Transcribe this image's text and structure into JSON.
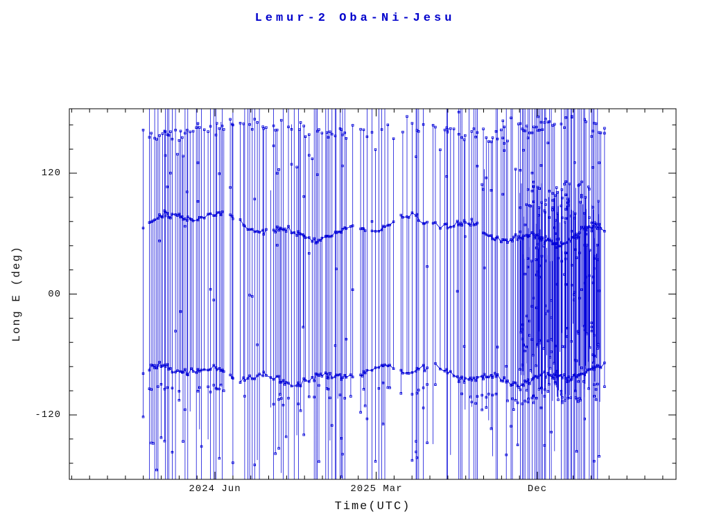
{
  "chart_data": {
    "type": "scatter",
    "title": "Lemur-2 Oba-Ni-Jesu",
    "xlabel": "Time(UTC)",
    "ylabel": "Long E (deg)",
    "legend": "none",
    "grid": false,
    "description": "Dense blue time-series of satellite pass longitudes (wrapping at +/-180 deg) versus time; thousands of points joined by near-vertical lines, with marker bands near +65 deg, -80 deg and a fringe near +165 deg, and a very dense cluster in late 2025 through early 2026.",
    "x_axis": {
      "range_months": [
        -8.13,
        25.74
      ],
      "reference": "months relative to 2024 Jun tick",
      "major_ticks": [
        {
          "m": 0,
          "label": "2024 Jun"
        },
        {
          "m": 9,
          "label": "2025 Mar"
        },
        {
          "m": 18,
          "label": "Dec"
        }
      ],
      "minor_step_months": 1
    },
    "y_axis": {
      "lim": [
        -184,
        184
      ],
      "major_ticks": [
        {
          "v": 120,
          "label": "120"
        },
        {
          "v": 0,
          "label": "00"
        },
        {
          "v": -120,
          "label": "-120"
        }
      ],
      "minor_step": 24
    },
    "style": {
      "data_color": "#0000d8",
      "title_color": "#0000cc",
      "frame_color": "#000000",
      "background": "#ffffff",
      "marker": "open-square"
    },
    "data_extent_months": [
      -4.1,
      21.8
    ],
    "sim": {
      "seed": 20240607,
      "start": -4.1,
      "end": 21.8,
      "step": 0.09,
      "skip_prob": 0.28,
      "full_line_prob": 0.34,
      "full_line_prob_dense": 0.8,
      "bands": [
        {
          "name": "upper-band",
          "c": 68,
          "drift": -0.3,
          "a1": 9,
          "p1": 12.5,
          "ph1": 2.0,
          "a2": 5,
          "p2": 3.4,
          "ph2": 0.5,
          "noise": 3.5,
          "prob": 0.92,
          "connect": true
        },
        {
          "name": "lower-band",
          "c": -80,
          "drift": 0,
          "a1": 6,
          "p1": 12.5,
          "ph1": 2.6,
          "a2": 4,
          "p2": 3.1,
          "ph2": 1.8,
          "noise": 3.5,
          "prob": 0.95,
          "connect": true
        },
        {
          "name": "lower-band-2",
          "c": -99,
          "drift": 0,
          "a1": 5,
          "p1": 12.5,
          "ph1": 2.6,
          "a2": 4,
          "p2": 3.1,
          "ph2": 1.8,
          "noise": 6,
          "prob": 0.35,
          "connect": false
        },
        {
          "name": "top-fringe",
          "c": 164,
          "drift": 0,
          "a1": 5,
          "p1": 9,
          "ph1": 0.3,
          "a2": 0,
          "p2": 1,
          "ph2": 0,
          "noise": 8,
          "prob": 0.62,
          "connect": false
        }
      ],
      "scatters": [
        {
          "lo": 96,
          "hi": 150,
          "prob": 0.26
        },
        {
          "lo": -170,
          "hi": -112,
          "prob": 0.28
        },
        {
          "lo": -182,
          "hi": 182,
          "prob": 0.45
        }
      ],
      "dense": {
        "m0": 17.0,
        "m1": 21.5,
        "extra": 5,
        "lo": -108,
        "hi": 112,
        "cols": 2
      }
    }
  }
}
